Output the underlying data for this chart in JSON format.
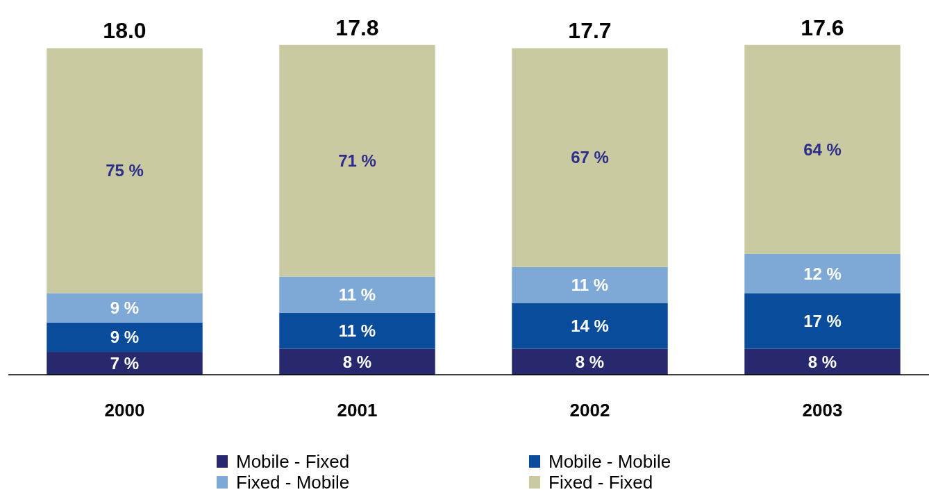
{
  "chart_data": {
    "type": "bar",
    "stacked": true,
    "categories": [
      "2000",
      "2001",
      "2002",
      "2003"
    ],
    "series": [
      {
        "name": "Mobile - Fixed",
        "color": "#28286e",
        "values": [
          7,
          8,
          8,
          8
        ],
        "value_labels": [
          "7 %",
          "8 %",
          "8 %",
          "8 %"
        ]
      },
      {
        "name": "Mobile - Mobile",
        "color": "#0a4c9c",
        "values": [
          9,
          11,
          14,
          17
        ],
        "value_labels": [
          "9 %",
          "11 %",
          "14 %",
          "17 %"
        ]
      },
      {
        "name": "Fixed - Mobile",
        "color": "#7ea9d6",
        "values": [
          9,
          11,
          11,
          12
        ],
        "value_labels": [
          "9 %",
          "11 %",
          "11 %",
          "12 %"
        ]
      },
      {
        "name": "Fixed - Fixed",
        "color": "#c9c9a2",
        "values": [
          75,
          71,
          67,
          64
        ],
        "value_labels": [
          "75 %",
          "71 %",
          "67 %",
          "64 %"
        ]
      }
    ],
    "annotations": [
      "18.0",
      "17.8",
      "17.7",
      "17.6"
    ],
    "legend": "bottom"
  }
}
